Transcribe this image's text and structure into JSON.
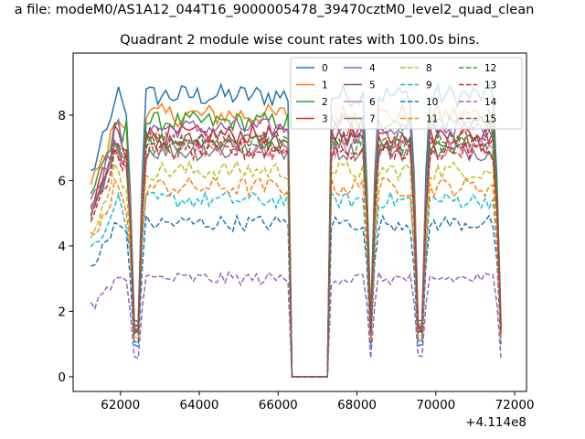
{
  "suptitle": "a file: modeM0/AS1A12_044T16_9000005478_39470cztM0_level2_quad_clean",
  "chart_data": {
    "type": "line",
    "title": "Quadrant 2 module wise count rates with 100.0s bins.",
    "xlabel": "",
    "ylabel": "",
    "x_offset_label": "+4.114e8",
    "xlim": [
      60800,
      72300
    ],
    "ylim": [
      -0.45,
      9.9
    ],
    "x_ticks": [
      62000,
      64000,
      66000,
      68000,
      70000,
      72000
    ],
    "x_tick_labels": [
      "62000",
      "64000",
      "66000",
      "68000",
      "70000",
      "72000"
    ],
    "y_ticks": [
      0,
      2,
      4,
      6,
      8
    ],
    "y_tick_labels": [
      "0",
      "2",
      "4",
      "6",
      "8"
    ],
    "legend_position": "upper right",
    "legend_columns": 4,
    "x_start": 61250,
    "x_step": 100,
    "gap": {
      "from": 66250,
      "to": 67350
    },
    "dips": [
      62400,
      68350,
      69600,
      71650
    ],
    "series": [
      {
        "name": "0",
        "color": "#1f77b4",
        "dash": "solid",
        "base": 8.6,
        "noise": 0.35
      },
      {
        "name": "1",
        "color": "#ff7f0e",
        "dash": "solid",
        "base": 8.0,
        "noise": 0.35
      },
      {
        "name": "2",
        "color": "#2ca02c",
        "dash": "solid",
        "base": 7.8,
        "noise": 0.3
      },
      {
        "name": "3",
        "color": "#d62728",
        "dash": "solid",
        "base": 7.4,
        "noise": 0.3
      },
      {
        "name": "4",
        "color": "#9467bd",
        "dash": "solid",
        "base": 7.6,
        "noise": 0.3
      },
      {
        "name": "5",
        "color": "#8c564b",
        "dash": "solid",
        "base": 7.2,
        "noise": 0.3
      },
      {
        "name": "6",
        "color": "#e377c2",
        "dash": "solid",
        "base": 7.0,
        "noise": 0.3
      },
      {
        "name": "7",
        "color": "#7f7f7f",
        "dash": "solid",
        "base": 6.9,
        "noise": 0.3
      },
      {
        "name": "8",
        "color": "#bcbd22",
        "dash": "dashed",
        "base": 6.3,
        "noise": 0.3
      },
      {
        "name": "9",
        "color": "#17becf",
        "dash": "dashed",
        "base": 5.4,
        "noise": 0.25
      },
      {
        "name": "10",
        "color": "#1f77b4",
        "dash": "dashed",
        "base": 4.7,
        "noise": 0.25
      },
      {
        "name": "11",
        "color": "#ff7f0e",
        "dash": "dashed",
        "base": 5.8,
        "noise": 0.3
      },
      {
        "name": "12",
        "color": "#2ca02c",
        "dash": "dashed",
        "base": 7.1,
        "noise": 0.3
      },
      {
        "name": "13",
        "color": "#d62728",
        "dash": "dashed",
        "base": 6.9,
        "noise": 0.3
      },
      {
        "name": "14",
        "color": "#9467bd",
        "dash": "dashed",
        "base": 3.0,
        "noise": 0.2
      },
      {
        "name": "15",
        "color": "#8c564b",
        "dash": "dashed",
        "base": 7.3,
        "noise": 0.3
      }
    ]
  }
}
